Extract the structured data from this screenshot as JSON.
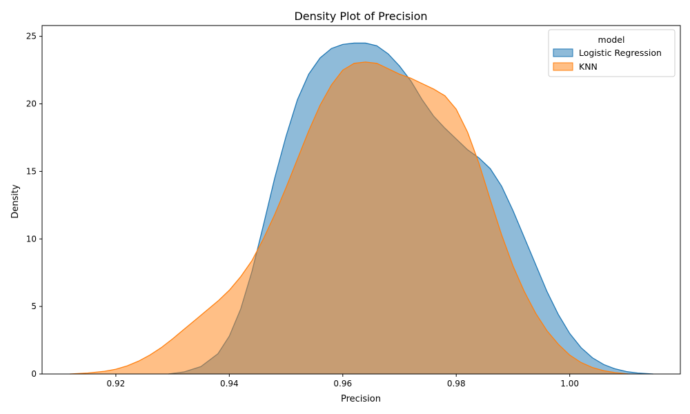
{
  "chart_data": {
    "type": "area",
    "title": "Density Plot of Precision",
    "xlabel": "Precision",
    "ylabel": "Density",
    "xlim": [
      0.907,
      1.0195
    ],
    "ylim": [
      0,
      25.8
    ],
    "xticks": [
      0.92,
      0.94,
      0.96,
      0.98,
      1.0
    ],
    "xtick_labels": [
      "0.92",
      "0.94",
      "0.96",
      "0.98",
      "1.00"
    ],
    "yticks": [
      0,
      5,
      10,
      15,
      20,
      25
    ],
    "ytick_labels": [
      "0",
      "5",
      "10",
      "15",
      "20",
      "25"
    ],
    "grid": false,
    "legend": {
      "title": "model",
      "placement": "top-right"
    },
    "series": [
      {
        "name": "Logistic Regression",
        "color": "#1f77b4",
        "fill_opacity": 0.5,
        "x": [
          0.9293,
          0.932,
          0.935,
          0.938,
          0.94,
          0.942,
          0.944,
          0.946,
          0.948,
          0.95,
          0.952,
          0.954,
          0.956,
          0.958,
          0.96,
          0.962,
          0.964,
          0.966,
          0.968,
          0.97,
          0.972,
          0.974,
          0.976,
          0.978,
          0.98,
          0.982,
          0.984,
          0.986,
          0.988,
          0.99,
          0.992,
          0.994,
          0.996,
          0.998,
          1.0,
          1.002,
          1.004,
          1.006,
          1.008,
          1.01,
          1.012,
          1.0147
        ],
        "y": [
          0.0,
          0.15,
          0.55,
          1.5,
          2.8,
          4.8,
          7.6,
          11.0,
          14.5,
          17.6,
          20.3,
          22.2,
          23.4,
          24.1,
          24.4,
          24.5,
          24.5,
          24.3,
          23.7,
          22.8,
          21.7,
          20.3,
          19.1,
          18.2,
          17.4,
          16.6,
          16.0,
          15.2,
          13.9,
          12.1,
          10.1,
          8.1,
          6.1,
          4.4,
          3.0,
          1.95,
          1.2,
          0.7,
          0.38,
          0.18,
          0.07,
          0.0
        ]
      },
      {
        "name": "KNN",
        "color": "#ff7f0e",
        "fill_opacity": 0.5,
        "x": [
          0.9119,
          0.915,
          0.918,
          0.92,
          0.922,
          0.924,
          0.926,
          0.928,
          0.93,
          0.932,
          0.934,
          0.936,
          0.938,
          0.94,
          0.942,
          0.944,
          0.946,
          0.948,
          0.95,
          0.952,
          0.954,
          0.956,
          0.958,
          0.96,
          0.962,
          0.964,
          0.966,
          0.968,
          0.97,
          0.972,
          0.974,
          0.976,
          0.978,
          0.98,
          0.982,
          0.984,
          0.986,
          0.988,
          0.99,
          0.992,
          0.994,
          0.996,
          0.998,
          1.0,
          1.002,
          1.004,
          1.006,
          1.008,
          1.0103
        ],
        "y": [
          0.0,
          0.07,
          0.2,
          0.35,
          0.6,
          0.95,
          1.4,
          1.95,
          2.6,
          3.3,
          4.0,
          4.7,
          5.4,
          6.2,
          7.2,
          8.4,
          10.0,
          11.8,
          13.8,
          15.9,
          18.0,
          19.9,
          21.4,
          22.5,
          23.0,
          23.1,
          23.0,
          22.6,
          22.2,
          21.9,
          21.5,
          21.1,
          20.6,
          19.6,
          17.9,
          15.6,
          12.9,
          10.3,
          8.0,
          6.1,
          4.5,
          3.2,
          2.2,
          1.4,
          0.85,
          0.48,
          0.24,
          0.1,
          0.0
        ]
      }
    ]
  }
}
